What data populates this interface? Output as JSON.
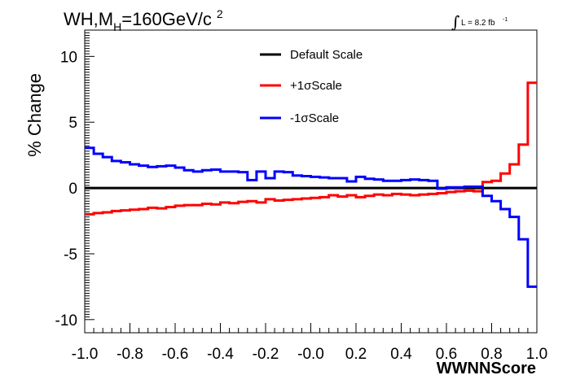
{
  "chart_data": {
    "type": "line",
    "title_prefix": "WH,M",
    "title_sub": "H",
    "title_suffix": "=160GeV/c",
    "title_sup": "2",
    "lumi_text": "L = 8.2 fb",
    "lumi_exp": "-1",
    "xlabel": "WWNNScore",
    "ylabel": "% Change",
    "xlim": [
      -1.0,
      1.0
    ],
    "ylim": [
      -11.0,
      12.0
    ],
    "x_ticks": [
      "-1.0",
      "-0.8",
      "-0.6",
      "-0.4",
      "-0.2",
      "-0.0",
      "0.2",
      "0.4",
      "0.6",
      "0.8",
      "1.0"
    ],
    "y_ticks": [
      "10",
      "5",
      "0",
      "-5",
      "-10"
    ],
    "legend_position": "top-center",
    "series": [
      {
        "name": "Default Scale",
        "color": "#000000",
        "values": [
          0,
          0,
          0,
          0,
          0,
          0,
          0,
          0,
          0,
          0,
          0,
          0,
          0,
          0,
          0,
          0,
          0,
          0,
          0,
          0,
          0,
          0,
          0,
          0,
          0,
          0,
          0,
          0,
          0,
          0,
          0,
          0,
          0,
          0,
          0,
          0,
          0,
          0,
          0,
          0,
          0,
          0,
          0,
          0,
          0,
          0,
          0,
          0,
          0,
          0
        ]
      },
      {
        "name": "+1σScale",
        "color": "#ff0000",
        "values": [
          -2.0,
          -1.9,
          -1.85,
          -1.75,
          -1.7,
          -1.65,
          -1.6,
          -1.5,
          -1.55,
          -1.45,
          -1.35,
          -1.3,
          -1.3,
          -1.2,
          -1.25,
          -1.1,
          -1.15,
          -1.05,
          -1.0,
          -1.1,
          -0.85,
          -0.95,
          -0.9,
          -0.85,
          -0.8,
          -0.75,
          -0.7,
          -0.55,
          -0.65,
          -0.55,
          -0.7,
          -0.6,
          -0.5,
          -0.55,
          -0.45,
          -0.5,
          -0.55,
          -0.5,
          -0.45,
          -0.4,
          -0.3,
          -0.25,
          -0.2,
          -0.25,
          0.45,
          0.55,
          1.1,
          1.8,
          3.3,
          8.0
        ]
      },
      {
        "name": "-1σScale",
        "color": "#0000ff",
        "values": [
          3.05,
          2.6,
          2.35,
          2.05,
          1.95,
          1.8,
          1.7,
          1.6,
          1.65,
          1.7,
          1.55,
          1.35,
          1.25,
          1.35,
          1.4,
          1.25,
          1.25,
          1.2,
          0.6,
          1.25,
          0.75,
          1.25,
          1.2,
          0.95,
          0.9,
          0.85,
          0.8,
          0.75,
          0.75,
          0.5,
          0.85,
          0.7,
          0.65,
          0.55,
          0.55,
          0.6,
          0.65,
          0.6,
          0.55,
          -0.05,
          0.05,
          0.05,
          0.1,
          0.1,
          -0.6,
          -1.0,
          -1.6,
          -2.2,
          -3.9,
          -7.5
        ]
      }
    ]
  }
}
